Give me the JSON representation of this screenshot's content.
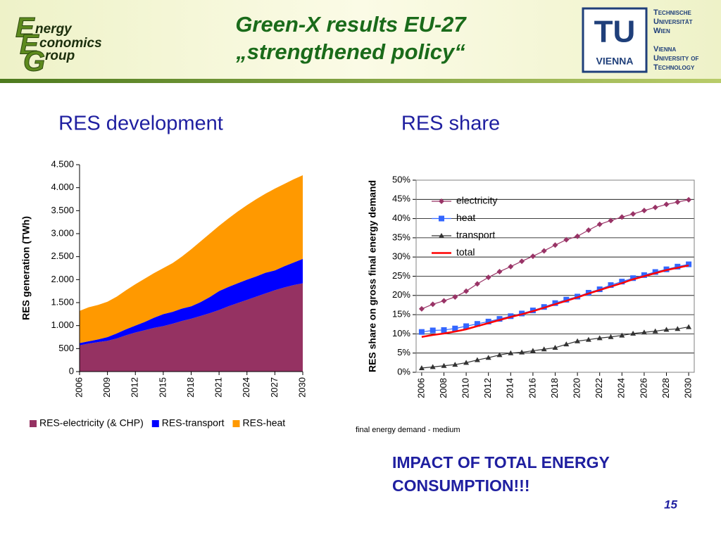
{
  "header": {
    "title_line1": "Green-X results EU-27",
    "title_line2": "„strengthened policy“",
    "logo_left": {
      "letters": [
        "E",
        "E",
        "G"
      ],
      "words": [
        "nergy",
        "conomics",
        "roup"
      ]
    },
    "logo_right": {
      "mark": "TU",
      "city": "VIENNA",
      "lines": [
        "Technische",
        "Universität",
        "Wien",
        "Vienna",
        "University of",
        "Technology"
      ]
    }
  },
  "chart_data": [
    {
      "type": "area",
      "title": "RES development",
      "y_label": "RES generation (TWh)",
      "x": [
        2006,
        2007,
        2008,
        2009,
        2010,
        2011,
        2012,
        2013,
        2014,
        2015,
        2016,
        2017,
        2018,
        2019,
        2020,
        2021,
        2022,
        2023,
        2024,
        2025,
        2026,
        2027,
        2028,
        2029,
        2030
      ],
      "xlim": [
        2006,
        2030
      ],
      "xticks": [
        2006,
        2009,
        2012,
        2015,
        2018,
        2021,
        2024,
        2027,
        2030
      ],
      "ylim": [
        0,
        4500
      ],
      "yticks": [
        0,
        500,
        {
          "value": 1000,
          "label": "1.000"
        },
        {
          "value": 1500,
          "label": "1.500"
        },
        {
          "value": 2000,
          "label": "2.000"
        },
        {
          "value": 2500,
          "label": "2.500"
        },
        {
          "value": 3000,
          "label": "3.000"
        },
        {
          "value": 3500,
          "label": "3.500"
        },
        {
          "value": 4000,
          "label": "4.000"
        },
        {
          "value": 4500,
          "label": "4.500"
        }
      ],
      "grid": false,
      "stacked": true,
      "legend": "bottom",
      "series": [
        {
          "name": "RES-electricity (& CHP)",
          "color": "#953262",
          "values": [
            570,
            610,
            640,
            670,
            720,
            790,
            850,
            900,
            950,
            990,
            1040,
            1100,
            1150,
            1210,
            1270,
            1340,
            1420,
            1490,
            1560,
            1630,
            1700,
            1770,
            1830,
            1880,
            1920
          ]
        },
        {
          "name": "RES-transport",
          "color": "#0000ff",
          "values": [
            50,
            50,
            60,
            80,
            110,
            130,
            150,
            180,
            220,
            260,
            260,
            270,
            270,
            300,
            350,
            410,
            420,
            430,
            440,
            440,
            450,
            430,
            460,
            490,
            530
          ]
        },
        {
          "name": "RES-heat",
          "color": "#ff9900",
          "values": [
            700,
            740,
            750,
            770,
            800,
            850,
            900,
            940,
            970,
            1000,
            1060,
            1130,
            1240,
            1320,
            1380,
            1420,
            1490,
            1560,
            1620,
            1680,
            1720,
            1780,
            1790,
            1810,
            1820
          ]
        }
      ]
    },
    {
      "type": "line",
      "title": "RES share",
      "y_label": "RES share on gross final energy demand",
      "note": "final energy demand - medium",
      "x": [
        2006,
        2007,
        2008,
        2009,
        2010,
        2011,
        2012,
        2013,
        2014,
        2015,
        2016,
        2017,
        2018,
        2019,
        2020,
        2021,
        2022,
        2023,
        2024,
        2025,
        2026,
        2027,
        2028,
        2029,
        2030
      ],
      "xlim": [
        2005.5,
        2030.5
      ],
      "xticks": [
        2006,
        2008,
        2010,
        2012,
        2014,
        2016,
        2018,
        2020,
        2022,
        2024,
        2026,
        2028,
        2030
      ],
      "ylim": [
        0,
        50
      ],
      "yticks": [
        {
          "value": 0,
          "label": "0%"
        },
        {
          "value": 5,
          "label": "5%"
        },
        {
          "value": 10,
          "label": "10%"
        },
        {
          "value": 15,
          "label": "15%"
        },
        {
          "value": 20,
          "label": "20%"
        },
        {
          "value": 25,
          "label": "25%"
        },
        {
          "value": 30,
          "label": "30%"
        },
        {
          "value": 35,
          "label": "35%"
        },
        {
          "value": 40,
          "label": "40%"
        },
        {
          "value": 45,
          "label": "45%"
        },
        {
          "value": 50,
          "label": "50%"
        }
      ],
      "grid": true,
      "legend": "top-left",
      "series": [
        {
          "name": "electricity",
          "color": "#993366",
          "marker": "diamond",
          "values": [
            16.5,
            17.7,
            18.6,
            19.6,
            21.1,
            23,
            24.7,
            26.2,
            27.5,
            28.9,
            30.2,
            31.6,
            33.1,
            34.5,
            35.4,
            37,
            38.5,
            39.5,
            40.4,
            41.2,
            42.1,
            42.9,
            43.7,
            44.3,
            44.9
          ]
        },
        {
          "name": "heat",
          "color": "#3366ff",
          "marker": "square",
          "values": [
            10.5,
            10.9,
            11,
            11.4,
            12,
            12.6,
            13.2,
            13.9,
            14.6,
            15.3,
            16.1,
            17,
            18,
            18.9,
            19.7,
            20.7,
            21.6,
            22.7,
            23.6,
            24.5,
            25.3,
            26.1,
            26.8,
            27.5,
            28.1
          ]
        },
        {
          "name": "transport",
          "color": "#333333",
          "marker": "triangle",
          "values": [
            1.1,
            1.4,
            1.7,
            2,
            2.5,
            3.2,
            3.8,
            4.5,
            5,
            5.2,
            5.6,
            6,
            6.4,
            7.3,
            8.1,
            8.5,
            8.9,
            9.2,
            9.6,
            10.1,
            10.4,
            10.7,
            11.1,
            11.3,
            11.8
          ]
        },
        {
          "name": "total",
          "color": "#ff0000",
          "marker": "none",
          "values": [
            9.2,
            9.7,
            10.1,
            10.6,
            11.2,
            12,
            12.8,
            13.6,
            14.4,
            15.1,
            15.9,
            16.8,
            17.7,
            18.6,
            19.5,
            20.5,
            21.4,
            22.3,
            23.2,
            24.2,
            25,
            25.8,
            26.6,
            27.2,
            27.8
          ]
        }
      ]
    }
  ],
  "callout": [
    "IMPACT OF TOTAL ENERGY",
    "CONSUMPTION!!!"
  ],
  "page_number": "15"
}
